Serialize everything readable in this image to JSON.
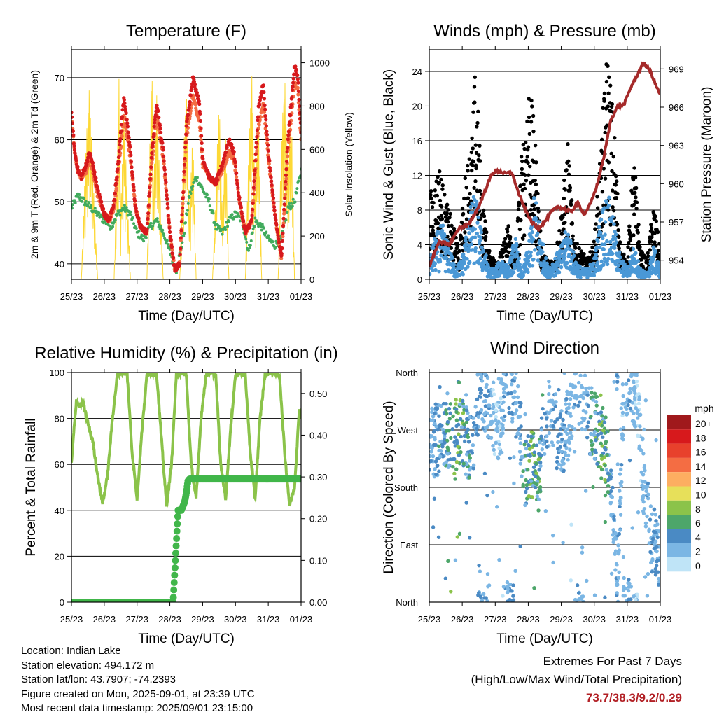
{
  "chart_data": [
    {
      "type": "line",
      "title": "Temperature (F)",
      "xlabel": "Time (Day/UTC)",
      "ylabel": "2m & 9m T (Red, Orange) & 2m Td (Green)",
      "ylabel_right": "Solar Insolation (Yellow)",
      "xticks": [
        "25/23",
        "26/23",
        "27/23",
        "28/23",
        "29/23",
        "30/23",
        "31/23",
        "01/23"
      ],
      "xlim": [
        0,
        7
      ],
      "ylim": [
        37.5,
        74.5
      ],
      "yticks": [
        40,
        50,
        60,
        70
      ],
      "ylim_right": [
        0,
        1060
      ],
      "yticks_right": [
        0,
        200,
        400,
        600,
        800,
        1000
      ],
      "grid": true,
      "series": [
        {
          "name": "2m T",
          "color": "#d7191c",
          "x": [
            0,
            0.1,
            0.2,
            0.3,
            0.45,
            0.55,
            0.65,
            0.8,
            1.0,
            1.15,
            1.3,
            1.45,
            1.6,
            1.8,
            1.95,
            2.1,
            2.3,
            2.45,
            2.6,
            2.8,
            3.0,
            3.15,
            3.3,
            3.5,
            3.7,
            3.9,
            4.0,
            4.2,
            4.4,
            4.6,
            4.8,
            4.95,
            5.1,
            5.3,
            5.5,
            5.7,
            5.85,
            6.0,
            6.2,
            6.4,
            6.6,
            6.8,
            6.9,
            7.0
          ],
          "y": [
            64,
            58,
            55,
            54,
            56,
            58,
            56,
            52,
            48,
            47,
            50,
            58,
            67,
            58,
            49,
            46,
            45,
            58,
            66,
            58,
            45,
            39,
            40,
            62,
            70,
            66,
            57,
            54,
            53,
            56,
            60,
            58,
            51,
            45,
            47,
            65,
            69,
            58,
            48,
            41,
            60,
            72,
            70,
            61
          ]
        },
        {
          "name": "9m T",
          "color": "#f46d43",
          "x": [
            0,
            0.1,
            0.2,
            0.3,
            0.45,
            0.55,
            0.65,
            0.8,
            1.0,
            1.15,
            1.3,
            1.45,
            1.6,
            1.8,
            1.95,
            2.1,
            2.3,
            2.45,
            2.6,
            2.8,
            3.0,
            3.15,
            3.3,
            3.5,
            3.7,
            3.9,
            4.0,
            4.2,
            4.4,
            4.6,
            4.8,
            4.95,
            5.1,
            5.3,
            5.5,
            5.7,
            5.85,
            6.0,
            6.2,
            6.4,
            6.6,
            6.8,
            6.9,
            7.0
          ],
          "y": [
            64,
            58,
            55,
            54,
            55,
            57,
            55,
            51,
            48,
            47,
            49,
            56,
            64,
            57,
            49,
            46,
            45,
            56,
            64,
            57,
            45,
            39,
            40,
            60,
            67,
            63,
            56,
            54,
            53,
            55,
            58,
            57,
            51,
            45,
            47,
            62,
            66,
            57,
            48,
            41,
            58,
            69,
            68,
            60
          ]
        },
        {
          "name": "2m Td",
          "color": "#41ab5d",
          "x": [
            0,
            0.2,
            0.4,
            0.6,
            0.8,
            1.0,
            1.2,
            1.4,
            1.6,
            1.8,
            2.0,
            2.2,
            2.4,
            2.6,
            2.8,
            3.0,
            3.2,
            3.4,
            3.6,
            3.8,
            4.0,
            4.2,
            4.4,
            4.6,
            4.8,
            5.0,
            5.2,
            5.4,
            5.6,
            5.8,
            6.0,
            6.2,
            6.4,
            6.6,
            6.8,
            7.0
          ],
          "y": [
            49,
            51,
            50,
            49,
            48,
            47,
            46,
            48,
            49,
            48,
            45,
            44,
            46,
            47,
            45,
            42,
            39,
            44,
            51,
            54,
            52,
            50,
            46,
            45,
            47,
            48,
            47,
            42,
            47,
            46,
            44,
            43,
            44,
            49,
            50,
            55
          ]
        },
        {
          "name": "Solar Insolation",
          "color": "#fdd835",
          "axis": "right",
          "x": [
            0,
            0.3,
            0.45,
            0.55,
            0.65,
            0.8,
            1.0,
            1.3,
            1.4,
            1.45,
            1.5,
            1.6,
            1.8,
            2.0,
            2.3,
            2.4,
            2.45,
            2.5,
            2.6,
            2.8,
            3.0,
            3.3,
            3.4,
            3.5,
            3.6,
            3.7,
            3.8,
            4.0,
            4.3,
            4.4,
            4.5,
            4.6,
            4.7,
            4.8,
            5.0,
            5.3,
            5.4,
            5.5,
            5.6,
            5.7,
            5.8,
            6.0,
            6.3,
            6.4,
            6.5,
            6.6,
            6.7,
            6.8,
            7.0
          ],
          "y": [
            0,
            0,
            650,
            900,
            500,
            0,
            0,
            0,
            600,
            930,
            300,
            800,
            0,
            0,
            0,
            700,
            1050,
            400,
            850,
            0,
            0,
            0,
            500,
            900,
            300,
            700,
            0,
            0,
            0,
            400,
            850,
            300,
            700,
            0,
            0,
            0,
            600,
            950,
            400,
            800,
            0,
            0,
            0,
            650,
            950,
            500,
            820,
            0,
            0
          ]
        }
      ]
    },
    {
      "type": "scatter",
      "title": "Winds (mph) & Pressure (mb)",
      "xlabel": "Time (Day/UTC)",
      "ylabel": "Sonic Wind & Gust (Blue, Black)",
      "ylabel_right": "Station Pressure (Maroon)",
      "xticks": [
        "25/23",
        "26/23",
        "27/23",
        "28/23",
        "29/23",
        "30/23",
        "31/23",
        "01/23"
      ],
      "xlim": [
        0,
        7
      ],
      "ylim": [
        0,
        26.5
      ],
      "yticks": [
        0,
        4,
        8,
        12,
        16,
        20,
        24
      ],
      "ylim_right": [
        952.5,
        970.5
      ],
      "yticks_right": [
        954,
        957,
        960,
        963,
        966,
        969
      ],
      "grid": true,
      "series": [
        {
          "name": "Gust",
          "color": "#000000",
          "x": [
            0.1,
            0.3,
            0.5,
            0.7,
            0.9,
            1.1,
            1.3,
            1.4,
            1.5,
            1.6,
            1.8,
            2.0,
            2.2,
            2.4,
            2.6,
            2.8,
            3.0,
            3.2,
            3.4,
            3.6,
            3.8,
            4.0,
            4.2,
            4.4,
            4.6,
            4.8,
            5.0,
            5.2,
            5.4,
            5.6,
            5.8,
            6.0,
            6.2,
            6.4,
            6.6,
            6.8,
            7.0
          ],
          "y": [
            9,
            12,
            8,
            6,
            3,
            11,
            15,
            22,
            16,
            9,
            3,
            2,
            3,
            6,
            2,
            13,
            21,
            15,
            3,
            2,
            2,
            7,
            14,
            4,
            3,
            2,
            4,
            14,
            24,
            16,
            3,
            2,
            13,
            3,
            2,
            8,
            3
          ]
        },
        {
          "name": "Wind",
          "color": "#4a98d6",
          "x": [
            0,
            0.2,
            0.4,
            0.6,
            0.8,
            1.0,
            1.2,
            1.4,
            1.6,
            1.8,
            2.0,
            2.2,
            2.4,
            2.6,
            2.8,
            3.0,
            3.2,
            3.4,
            3.6,
            3.8,
            4.0,
            4.2,
            4.4,
            4.6,
            4.8,
            5.0,
            5.2,
            5.4,
            5.6,
            5.8,
            6.0,
            6.2,
            6.4,
            6.6,
            6.8,
            7.0
          ],
          "y": [
            2,
            4,
            5,
            3,
            1,
            2,
            6,
            8,
            4,
            1,
            1,
            2,
            1,
            4,
            0.5,
            3,
            8,
            4,
            1,
            2,
            3,
            5,
            2,
            1,
            1,
            2,
            6,
            8,
            5,
            2,
            1,
            3,
            1,
            0.5,
            3,
            1
          ]
        },
        {
          "name": "Station Pressure",
          "color": "#a52a2a",
          "axis": "right",
          "x": [
            0,
            0.3,
            0.6,
            0.9,
            1.2,
            1.5,
            1.7,
            1.9,
            2.1,
            2.3,
            2.5,
            2.7,
            2.9,
            3.1,
            3.3,
            3.5,
            3.7,
            3.9,
            4.1,
            4.3,
            4.5,
            4.7,
            4.9,
            5.1,
            5.3,
            5.5,
            5.7,
            5.9,
            6.1,
            6.3,
            6.5,
            6.7,
            6.9,
            7.0
          ],
          "y": [
            953.5,
            955.5,
            955.2,
            956.5,
            956.8,
            958.2,
            959.5,
            960.8,
            961.0,
            960.8,
            960.9,
            959.3,
            958.0,
            957.0,
            956.5,
            957.0,
            957.8,
            958.2,
            958.0,
            957.8,
            958.5,
            957.6,
            958.5,
            960.0,
            962.2,
            965.0,
            966.0,
            966.2,
            967.5,
            968.5,
            969.5,
            968.8,
            967.5,
            967.0
          ]
        }
      ]
    },
    {
      "type": "line",
      "title": "Relative Humidity (%) & Precipitation (in)",
      "xlabel": "Time (Day/UTC)",
      "ylabel": "Percent & Total Rainfall",
      "xticks": [
        "25/23",
        "26/23",
        "27/23",
        "28/23",
        "29/23",
        "30/23",
        "31/23",
        "01/23"
      ],
      "xlim": [
        0,
        7
      ],
      "ylim": [
        0,
        100
      ],
      "yticks": [
        0,
        20,
        40,
        60,
        80,
        100
      ],
      "ylim_right": [
        0,
        0.55
      ],
      "yticks_right": [
        "0.00",
        "0.10",
        "0.20",
        "0.30",
        "0.40",
        "0.50"
      ],
      "grid": true,
      "series": [
        {
          "name": "Relative Humidity",
          "color": "#8bc34a",
          "x": [
            0,
            0.05,
            0.15,
            0.25,
            0.35,
            0.5,
            0.65,
            0.8,
            0.95,
            1.1,
            1.25,
            1.4,
            1.55,
            1.7,
            1.85,
            2.0,
            2.15,
            2.3,
            2.45,
            2.6,
            2.75,
            2.9,
            3.05,
            3.2,
            3.35,
            3.5,
            3.65,
            3.8,
            3.95,
            4.1,
            4.25,
            4.4,
            4.55,
            4.7,
            4.85,
            5.0,
            5.15,
            5.3,
            5.45,
            5.6,
            5.75,
            5.9,
            6.05,
            6.2,
            6.35,
            6.5,
            6.65,
            6.8,
            6.95,
            7.0
          ],
          "y": [
            60,
            70,
            88,
            85,
            87,
            78,
            70,
            55,
            43,
            55,
            80,
            99,
            100,
            99,
            65,
            45,
            75,
            99,
            100,
            99,
            70,
            42,
            60,
            99,
            100,
            99,
            60,
            45,
            80,
            99,
            100,
            99,
            60,
            45,
            75,
            99,
            100,
            99,
            65,
            45,
            80,
            99,
            100,
            100,
            98,
            65,
            42,
            50,
            85,
            80
          ]
        },
        {
          "name": "Total Precipitation",
          "color": "#41b64a",
          "x": [
            0,
            1,
            2,
            3.1,
            3.25,
            3.35,
            3.45,
            3.5,
            3.55,
            3.6,
            3.8,
            5,
            6,
            7
          ],
          "y": [
            0,
            0,
            0,
            0,
            0.22,
            0.22,
            0.24,
            0.26,
            0.29,
            0.295,
            0.295,
            0.295,
            0.295,
            0.295
          ]
        }
      ]
    },
    {
      "type": "scatter",
      "title": "Wind Direction",
      "xlabel": "Time (Day/UTC)",
      "ylabel": "Direction (Colored By Speed)",
      "xticks": [
        "25/23",
        "26/23",
        "27/23",
        "28/23",
        "29/23",
        "30/23",
        "31/23",
        "01/23"
      ],
      "xlim": [
        0,
        7
      ],
      "ylim": [
        0,
        360
      ],
      "yticks": [
        "North",
        "East",
        "South",
        "West",
        "North"
      ],
      "grid": true,
      "legend_title": "mph",
      "legend_labels": [
        "20+",
        "18",
        "16",
        "14",
        "12",
        "10",
        "8",
        "6",
        "4",
        "2",
        "0"
      ],
      "legend_colors": [
        "#a0191c",
        "#d7191c",
        "#e8412c",
        "#f46d43",
        "#fdae61",
        "#e7e05a",
        "#8bc34a",
        "#4da66a",
        "#4a8ac4",
        "#7bb6e4",
        "#bfe4f7"
      ],
      "series": [
        {
          "name": "direction",
          "x": [
            0.1,
            0.3,
            0.5,
            0.7,
            0.9,
            1.1,
            1.3,
            1.5,
            1.7,
            1.9,
            2.1,
            2.3,
            2.5,
            2.7,
            2.9,
            3.1,
            3.3,
            3.5,
            3.7,
            3.9,
            4.1,
            4.3,
            4.5,
            4.7,
            4.9,
            5.1,
            5.3,
            5.5,
            5.7,
            5.9,
            6.1,
            6.3,
            6.5,
            6.7,
            6.9
          ],
          "y": [
            250,
            255,
            260,
            250,
            270,
            255,
            240,
            330,
            320,
            300,
            260,
            350,
            330,
            300,
            200,
            220,
            190,
            290,
            300,
            250,
            260,
            300,
            340,
            310,
            280,
            270,
            250,
            200,
            10,
            350,
            340,
            320,
            180,
            110,
            80
          ],
          "speed": [
            3,
            4,
            5,
            6,
            7,
            5,
            4,
            3,
            4,
            2,
            1,
            3,
            4,
            2,
            6,
            7,
            6,
            3,
            2,
            4,
            3,
            2,
            3,
            2,
            5,
            6,
            7,
            4,
            3,
            2,
            4,
            1,
            2,
            3,
            4
          ]
        }
      ]
    }
  ],
  "info": {
    "location": "Location: Indian Lake",
    "elevation": "Station elevation: 494.172 m",
    "latlon": "Station lat/lon: 43.7907; -74.2393",
    "created": "Figure created on Mon, 2025-09-01, at 23:39 UTC",
    "timestamp": "Most recent data timestamp: 2025/09/01 23:15:00"
  },
  "extremes": {
    "title": "Extremes For Past 7 Days",
    "subtitle": "(High/Low/Max Wind/Total Precipitation)",
    "values": "73.7/38.3/9.2/0.29"
  }
}
